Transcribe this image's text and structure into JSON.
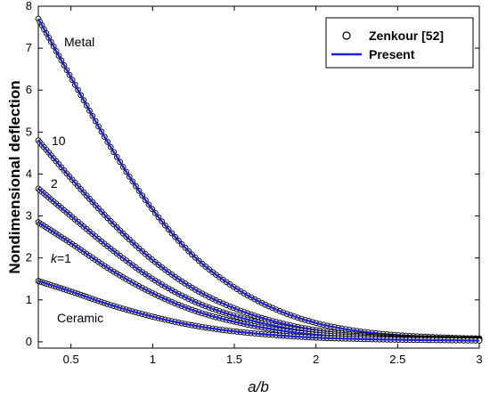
{
  "chart_data": {
    "type": "line",
    "title": "",
    "xlabel": "a/b",
    "ylabel": "Nondimensional deflection",
    "xlim": [
      0.3,
      3.0
    ],
    "ylim": [
      -0.15,
      8.0
    ],
    "xticks": [
      0.5,
      1,
      1.5,
      2,
      2.5,
      3
    ],
    "xtick_labels": [
      "0.5",
      "1",
      "1.5",
      "2",
      "2.5",
      "3"
    ],
    "yticks": [
      0,
      1,
      2,
      3,
      4,
      5,
      6,
      7,
      8
    ],
    "ytick_labels": [
      "0",
      "1",
      "2",
      "3",
      "4",
      "5",
      "6",
      "7",
      "8"
    ],
    "grid": false,
    "legend_position": "top-right",
    "legend": [
      {
        "label": "Zenkour [52]",
        "marker": "circle"
      },
      {
        "label": "Present",
        "marker": "line"
      }
    ],
    "line_color": "#1f1fd6",
    "marker_color": "#000000",
    "series": [
      {
        "label": "Metal",
        "x": [
          0.3,
          0.5,
          0.75,
          1.0,
          1.25,
          1.5,
          1.75,
          2.0,
          2.25,
          2.5,
          2.75,
          3.0
        ],
        "y": [
          7.7,
          6.3,
          4.6,
          3.15,
          2.05,
          1.3,
          0.78,
          0.45,
          0.26,
          0.16,
          0.11,
          0.08
        ]
      },
      {
        "label": "10",
        "x": [
          0.3,
          0.5,
          0.75,
          1.0,
          1.25,
          1.5,
          1.75,
          2.0,
          2.25,
          2.5,
          2.75,
          3.0
        ],
        "y": [
          4.8,
          3.9,
          2.85,
          1.95,
          1.27,
          0.8,
          0.48,
          0.28,
          0.17,
          0.11,
          0.08,
          0.06
        ]
      },
      {
        "label": "2",
        "x": [
          0.3,
          0.5,
          0.75,
          1.0,
          1.25,
          1.5,
          1.75,
          2.0,
          2.25,
          2.5,
          2.75,
          3.0
        ],
        "y": [
          3.65,
          3.0,
          2.2,
          1.5,
          0.97,
          0.62,
          0.38,
          0.22,
          0.14,
          0.09,
          0.07,
          0.05
        ]
      },
      {
        "label": "k=1",
        "label_parts": {
          "italic": "k",
          "rest": "=1"
        },
        "x": [
          0.3,
          0.5,
          0.75,
          1.0,
          1.25,
          1.5,
          1.75,
          2.0,
          2.25,
          2.5,
          2.75,
          3.0
        ],
        "y": [
          2.85,
          2.35,
          1.7,
          1.16,
          0.75,
          0.48,
          0.29,
          0.17,
          0.11,
          0.07,
          0.05,
          0.04
        ]
      },
      {
        "label": "Ceramic",
        "x": [
          0.3,
          0.5,
          0.75,
          1.0,
          1.25,
          1.5,
          1.75,
          2.0,
          2.25,
          2.5,
          2.75,
          3.0
        ],
        "y": [
          1.45,
          1.2,
          0.87,
          0.6,
          0.39,
          0.25,
          0.16,
          0.1,
          0.07,
          0.05,
          0.04,
          0.03
        ]
      }
    ]
  }
}
